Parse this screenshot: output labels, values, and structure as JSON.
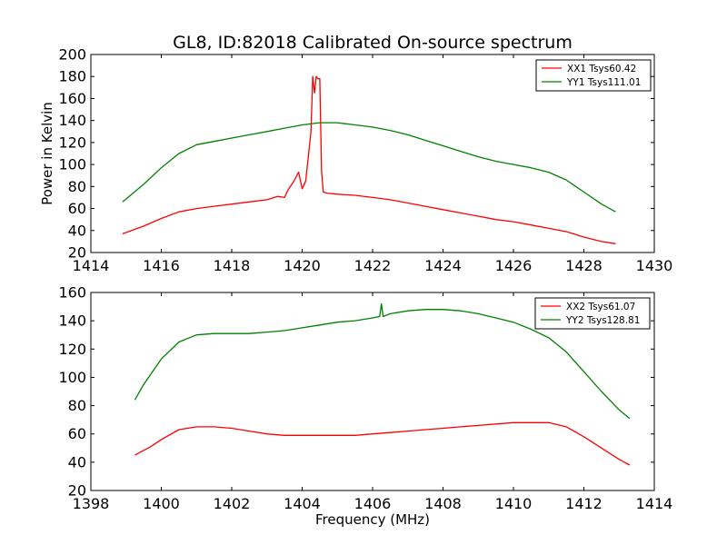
{
  "figure": {
    "title": "GL8, ID:82018 Calibrated On-source spectrum"
  },
  "chart_data": [
    {
      "type": "line",
      "title": "GL8, ID:82018 Calibrated On-source spectrum",
      "xlabel": "",
      "ylabel": "Power in Kelvin",
      "xlim": [
        1414,
        1430
      ],
      "ylim": [
        20,
        200
      ],
      "xticks": [
        "1414",
        "1416",
        "1418",
        "1420",
        "1422",
        "1424",
        "1426",
        "1428",
        "1430"
      ],
      "yticks": [
        "20",
        "40",
        "60",
        "80",
        "100",
        "120",
        "140",
        "160",
        "180",
        "200"
      ],
      "grid": false,
      "legend_position": "top-right",
      "series": [
        {
          "name": "XX1 Tsys60.42",
          "color": "#ff0000",
          "x": [
            1414.9,
            1415.5,
            1416.0,
            1416.5,
            1417.0,
            1417.5,
            1418.0,
            1418.5,
            1419.0,
            1419.3,
            1419.5,
            1419.6,
            1419.75,
            1419.9,
            1420.0,
            1420.1,
            1420.2,
            1420.25,
            1420.3,
            1420.35,
            1420.4,
            1420.45,
            1420.5,
            1420.55,
            1420.6,
            1420.7,
            1421.0,
            1421.5,
            1422.0,
            1422.5,
            1423.0,
            1423.5,
            1424.0,
            1424.5,
            1425.0,
            1425.5,
            1426.0,
            1426.5,
            1427.0,
            1427.5,
            1428.0,
            1428.5,
            1428.9
          ],
          "y": [
            37,
            44,
            51,
            57,
            60,
            62,
            64,
            66,
            68,
            71,
            70,
            77,
            84,
            93,
            78,
            85,
            115,
            130,
            180,
            165,
            180,
            178,
            178,
            95,
            75,
            74,
            73,
            72,
            70,
            68,
            65,
            62,
            59,
            56,
            53,
            50,
            48,
            45,
            42,
            39,
            34,
            30,
            28
          ]
        },
        {
          "name": "YY1 Tsys111.01",
          "color": "#008000",
          "x": [
            1414.9,
            1415.5,
            1416.0,
            1416.5,
            1417.0,
            1417.5,
            1418.0,
            1418.5,
            1419.0,
            1419.5,
            1420.0,
            1420.5,
            1421.0,
            1421.5,
            1422.0,
            1422.5,
            1423.0,
            1423.5,
            1424.0,
            1424.5,
            1425.0,
            1425.5,
            1426.0,
            1426.5,
            1427.0,
            1427.5,
            1428.0,
            1428.5,
            1428.9
          ],
          "y": [
            66,
            82,
            97,
            110,
            118,
            121,
            124,
            127,
            130,
            133,
            136,
            138,
            138,
            136,
            134,
            131,
            127,
            122,
            117,
            112,
            107,
            103,
            100,
            97,
            93,
            86,
            75,
            64,
            57
          ]
        }
      ]
    },
    {
      "type": "line",
      "title": "",
      "xlabel": "Frequency (MHz)",
      "ylabel": "",
      "xlim": [
        1398,
        1414
      ],
      "ylim": [
        20,
        160
      ],
      "xticks": [
        "1398",
        "1400",
        "1402",
        "1404",
        "1406",
        "1408",
        "1410",
        "1412",
        "1414"
      ],
      "yticks": [
        "20",
        "40",
        "60",
        "80",
        "100",
        "120",
        "140",
        "160"
      ],
      "grid": false,
      "legend_position": "top-right",
      "series": [
        {
          "name": "XX2 Tsys61.07",
          "color": "#ff0000",
          "x": [
            1399.25,
            1399.7,
            1400.0,
            1400.5,
            1401.0,
            1401.5,
            1402.0,
            1402.5,
            1403.0,
            1403.5,
            1404.0,
            1404.5,
            1405.0,
            1405.5,
            1406.0,
            1406.5,
            1407.0,
            1407.5,
            1408.0,
            1408.5,
            1409.0,
            1409.5,
            1410.0,
            1410.5,
            1411.0,
            1411.5,
            1412.0,
            1412.5,
            1413.0,
            1413.3
          ],
          "y": [
            45,
            51,
            56,
            63,
            65,
            65,
            64,
            62,
            60,
            59,
            59,
            59,
            59,
            59,
            60,
            61,
            62,
            63,
            64,
            65,
            66,
            67,
            68,
            68,
            68,
            65,
            58,
            50,
            42,
            38
          ]
        },
        {
          "name": "YY2 Tsys128.81",
          "color": "#008000",
          "x": [
            1399.25,
            1399.5,
            1400.0,
            1400.5,
            1401.0,
            1401.5,
            1402.0,
            1402.5,
            1403.0,
            1403.5,
            1404.0,
            1404.5,
            1405.0,
            1405.5,
            1406.0,
            1406.2,
            1406.25,
            1406.3,
            1406.4,
            1406.5,
            1407.0,
            1407.5,
            1408.0,
            1408.5,
            1409.0,
            1409.5,
            1410.0,
            1410.5,
            1411.0,
            1411.5,
            1412.0,
            1412.5,
            1413.0,
            1413.3
          ],
          "y": [
            84,
            95,
            113,
            125,
            130,
            131,
            131,
            131,
            132,
            133,
            135,
            137,
            139,
            140,
            142,
            143,
            152,
            143,
            144,
            145,
            147,
            148,
            148,
            147,
            145,
            142,
            139,
            134,
            128,
            118,
            104,
            90,
            77,
            71
          ]
        }
      ]
    }
  ]
}
